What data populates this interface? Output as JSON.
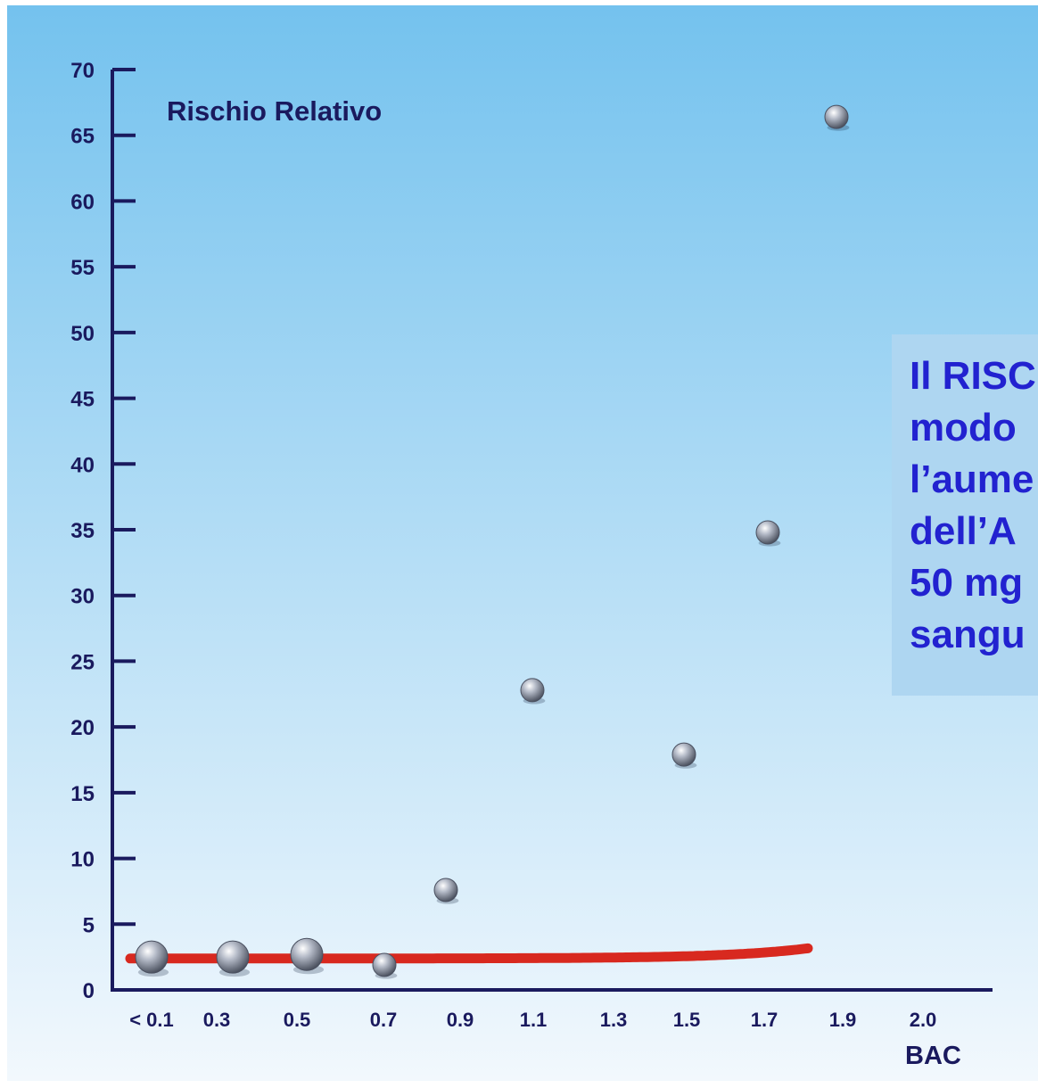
{
  "chart_data": {
    "type": "scatter",
    "title": "",
    "ylabel": "Rischio Relativo",
    "xlabel": "BAC",
    "ylim": [
      0,
      70
    ],
    "yticks": [
      "0",
      "5",
      "10",
      "15",
      "20",
      "25",
      "30",
      "35",
      "40",
      "45",
      "50",
      "55",
      "60",
      "65",
      "70"
    ],
    "xticks": [
      "< 0.1",
      "0.3",
      "0.5",
      "0.7",
      "0.9",
      "1.1",
      "1.3",
      "1.5",
      "1.7",
      "1.9",
      "2.0"
    ],
    "points": [
      {
        "x": "< 0.1",
        "y": 2.5
      },
      {
        "x": "0.3",
        "y": 2.5
      },
      {
        "x": "0.5",
        "y": 2.7
      },
      {
        "x": "0.7",
        "y": 1.9
      },
      {
        "x": "0.9",
        "y": 7.6
      },
      {
        "x": "1.1",
        "y": 22.8
      },
      {
        "x": "1.5",
        "y": 17.9
      },
      {
        "x": "1.7",
        "y": 34.8
      },
      {
        "x": "1.9",
        "y": 66.4
      }
    ],
    "trend": "exponential",
    "colors": {
      "background_top": "#74c2ee",
      "background_bottom": "#f2f8fd",
      "axis": "#1a1a5e",
      "curve": "#d8291f",
      "point": "#8a93a4"
    }
  },
  "callout": {
    "lines": [
      "Il RISC",
      "modo",
      "l’aume",
      "dell’A",
      "50 mg",
      "sangu"
    ]
  }
}
